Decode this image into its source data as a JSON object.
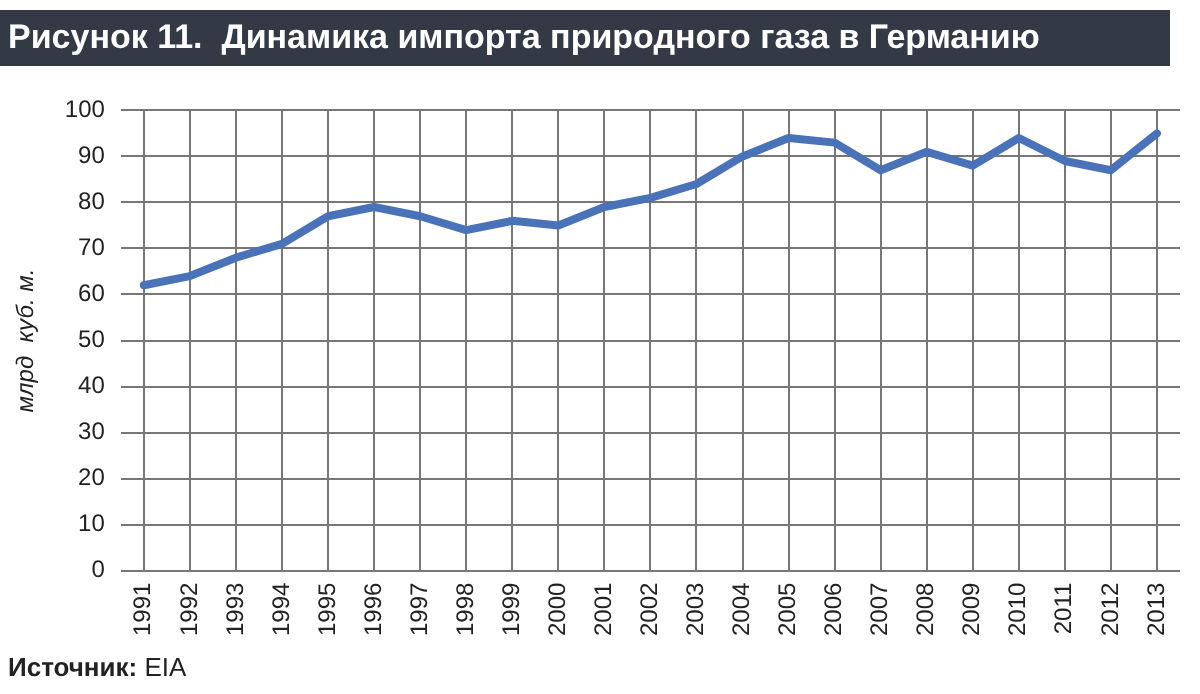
{
  "chart_data": {
    "type": "line",
    "title": "Рисунок 11.  Динамика импорта природного газа в Германию",
    "ylabel": "млрд  куб. м.",
    "annotations": [
      "Источник: EIA"
    ],
    "categories": [
      "1991",
      "1992",
      "1993",
      "1994",
      "1995",
      "1996",
      "1997",
      "1998",
      "1999",
      "2000",
      "2001",
      "2002",
      "2003",
      "2004",
      "2005",
      "2006",
      "2007",
      "2008",
      "2009",
      "2010",
      "2011",
      "2012",
      "2013"
    ],
    "series": [
      {
        "color": "#4a72b8",
        "values": [
          62,
          64,
          68,
          71,
          77,
          79,
          77,
          74,
          76,
          75,
          79,
          81,
          84,
          90,
          94,
          93,
          87,
          91,
          88,
          94,
          89,
          87,
          95
        ]
      }
    ],
    "ylim": [
      0,
      100
    ],
    "yticks": [
      0,
      10,
      20,
      30,
      40,
      50,
      60,
      70,
      80,
      90,
      100
    ],
    "grid": true,
    "legend": false,
    "marker": "none",
    "line_style": "solid"
  }
}
